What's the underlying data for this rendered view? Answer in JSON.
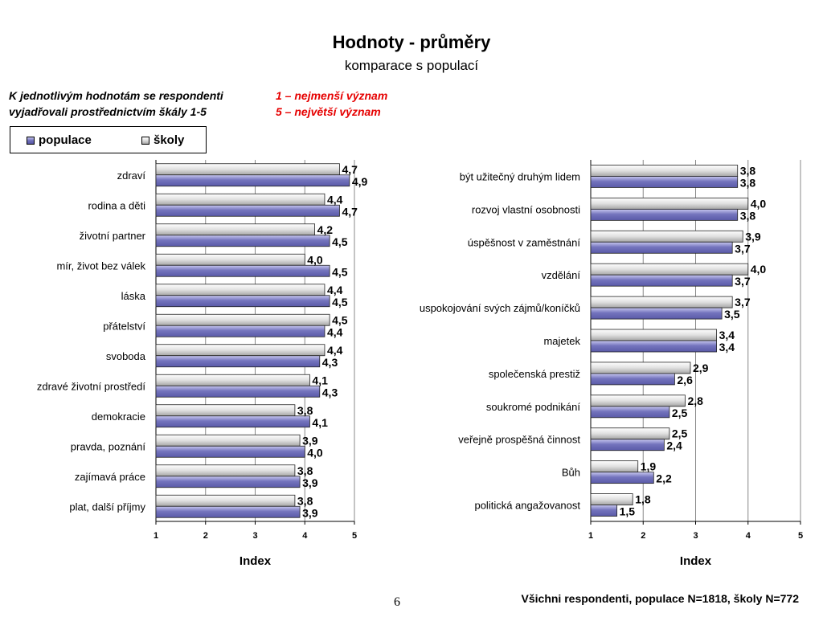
{
  "title": "Hodnoty - průměry",
  "subtitle": "komparace s populací",
  "scale_note": {
    "left_line1": "K jednotlivým hodnotám se respondenti",
    "left_line2": "vyjadřovali prostřednictvím škály 1-5",
    "right_line1": "1 – nejmenší význam",
    "right_line2": "5 – největší význam"
  },
  "legend": {
    "populace": "populace",
    "skoly": "školy"
  },
  "colors": {
    "populace": "#6b6bb7",
    "skoly": "#d9d9d9",
    "scale_note_red": "#e60000"
  },
  "chart_data": [
    {
      "type": "bar",
      "orientation": "horizontal",
      "xlabel": "Index",
      "xlim": [
        1,
        5
      ],
      "xticks": [
        "1",
        "2",
        "3",
        "4",
        "5"
      ],
      "categories": [
        "zdraví",
        "rodina a děti",
        "životní partner",
        "mír, život bez válek",
        "láska",
        "přátelství",
        "svoboda",
        "zdravé životní prostředí",
        "demokracie",
        "pravda, poznání",
        "zajímavá práce",
        "plat, další příjmy"
      ],
      "series": [
        {
          "name": "školy",
          "values": [
            4.7,
            4.4,
            4.2,
            4.0,
            4.4,
            4.5,
            4.4,
            4.1,
            3.8,
            3.9,
            3.8,
            3.8
          ],
          "labels": [
            "4,7",
            "4,4",
            "4,2",
            "4,0",
            "4,4",
            "4,5",
            "4,4",
            "4,1",
            "3,8",
            "3,9",
            "3,8",
            "3,8"
          ]
        },
        {
          "name": "populace",
          "values": [
            4.9,
            4.7,
            4.5,
            4.5,
            4.5,
            4.4,
            4.3,
            4.3,
            4.1,
            4.0,
            3.9,
            3.9
          ],
          "labels": [
            "4,9",
            "4,7",
            "4,5",
            "4,5",
            "4,5",
            "4,4",
            "4,3",
            "4,3",
            "4,1",
            "4,0",
            "3,9",
            "3,9"
          ]
        }
      ]
    },
    {
      "type": "bar",
      "orientation": "horizontal",
      "xlabel": "Index",
      "xlim": [
        1,
        5
      ],
      "xticks": [
        "1",
        "2",
        "3",
        "4",
        "5"
      ],
      "categories": [
        "být užitečný druhým lidem",
        "rozvoj vlastní osobnosti",
        "úspěšnost v zaměstnání",
        "vzdělání",
        "uspokojování svých zájmů/koníčků",
        "majetek",
        "společenská prestiž",
        "soukromé podnikání",
        "veřejně prospěšná činnost",
        "Bůh",
        "politická angažovanost"
      ],
      "series": [
        {
          "name": "školy",
          "values": [
            3.8,
            4.0,
            3.9,
            4.0,
            3.7,
            3.4,
            2.9,
            2.8,
            2.5,
            1.9,
            1.8
          ],
          "labels": [
            "3,8",
            "4,0",
            "3,9",
            "4,0",
            "3,7",
            "3,4",
            "2,9",
            "2,8",
            "2,5",
            "1,9",
            "1,8"
          ]
        },
        {
          "name": "populace",
          "values": [
            3.8,
            3.8,
            3.7,
            3.7,
            3.5,
            3.4,
            2.6,
            2.5,
            2.4,
            2.2,
            1.5
          ],
          "labels": [
            "3,8",
            "3,8",
            "3,7",
            "3,7",
            "3,5",
            "3,4",
            "2,6",
            "2,5",
            "2,4",
            "2,2",
            "1,5"
          ]
        }
      ]
    }
  ],
  "footnote": "Všichni respondenti, populace N=1818, školy N=772",
  "page_number": "6"
}
